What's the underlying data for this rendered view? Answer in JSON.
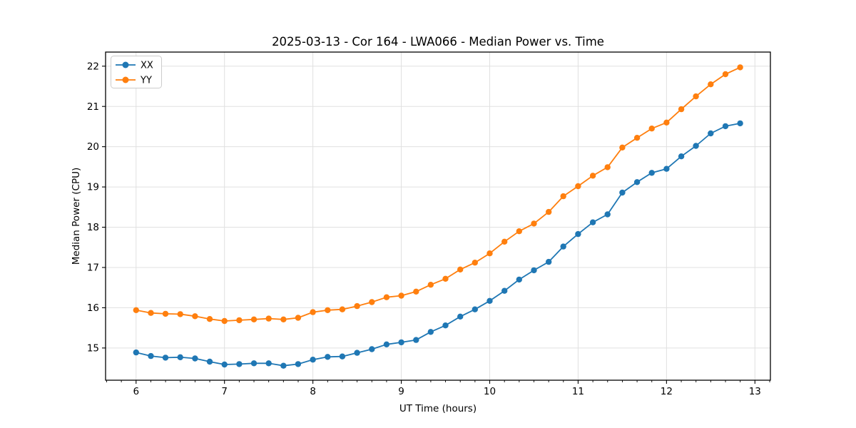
{
  "chart_data": {
    "type": "line",
    "title": "2025-03-13 - Cor 164 - LWA066 - Median Power vs. Time",
    "xlabel": "UT Time (hours)",
    "ylabel": "Median Power (CPU)",
    "xlim": [
      5.655,
      13.175
    ],
    "ylim": [
      14.2,
      22.35
    ],
    "xticks": [
      6,
      7,
      8,
      9,
      10,
      11,
      12,
      13
    ],
    "yticks": [
      15,
      16,
      17,
      18,
      19,
      20,
      21,
      22
    ],
    "minor_xtick_step": 0.16667,
    "grid": true,
    "legend_position": "upper-left",
    "marker": "circle",
    "x": [
      6.0,
      6.167,
      6.333,
      6.5,
      6.667,
      6.833,
      7.0,
      7.167,
      7.333,
      7.5,
      7.667,
      7.833,
      8.0,
      8.167,
      8.333,
      8.5,
      8.667,
      8.833,
      9.0,
      9.167,
      9.333,
      9.5,
      9.667,
      9.833,
      10.0,
      10.167,
      10.333,
      10.5,
      10.667,
      10.833,
      11.0,
      11.167,
      11.333,
      11.5,
      11.667,
      11.833,
      12.0,
      12.167,
      12.333,
      12.5,
      12.667,
      12.833
    ],
    "series": [
      {
        "name": "XX",
        "color": "#1f77b4",
        "values": [
          14.89,
          14.8,
          14.76,
          14.77,
          14.74,
          14.66,
          14.59,
          14.6,
          14.62,
          14.62,
          14.56,
          14.6,
          14.71,
          14.78,
          14.79,
          14.88,
          14.97,
          15.09,
          15.14,
          15.2,
          15.4,
          15.56,
          15.78,
          15.96,
          16.17,
          16.42,
          16.7,
          16.93,
          17.14,
          17.52,
          17.83,
          18.12,
          18.32,
          18.86,
          19.12,
          19.35,
          19.45,
          19.76,
          20.02,
          20.33,
          20.51,
          20.58
        ]
      },
      {
        "name": "YY",
        "color": "#ff7f0e",
        "values": [
          15.94,
          15.87,
          15.85,
          15.84,
          15.79,
          15.72,
          15.67,
          15.69,
          15.71,
          15.73,
          15.71,
          15.75,
          15.89,
          15.94,
          15.96,
          16.04,
          16.14,
          16.26,
          16.3,
          16.4,
          16.57,
          16.72,
          16.95,
          17.12,
          17.35,
          17.64,
          17.9,
          18.09,
          18.38,
          18.77,
          19.02,
          19.28,
          19.49,
          19.98,
          20.22,
          20.45,
          20.6,
          20.93,
          21.25,
          21.55,
          21.8,
          21.97
        ]
      }
    ],
    "colors": {
      "grid": "#e0e0e0",
      "spine": "#000000",
      "background": "#ffffff"
    }
  }
}
